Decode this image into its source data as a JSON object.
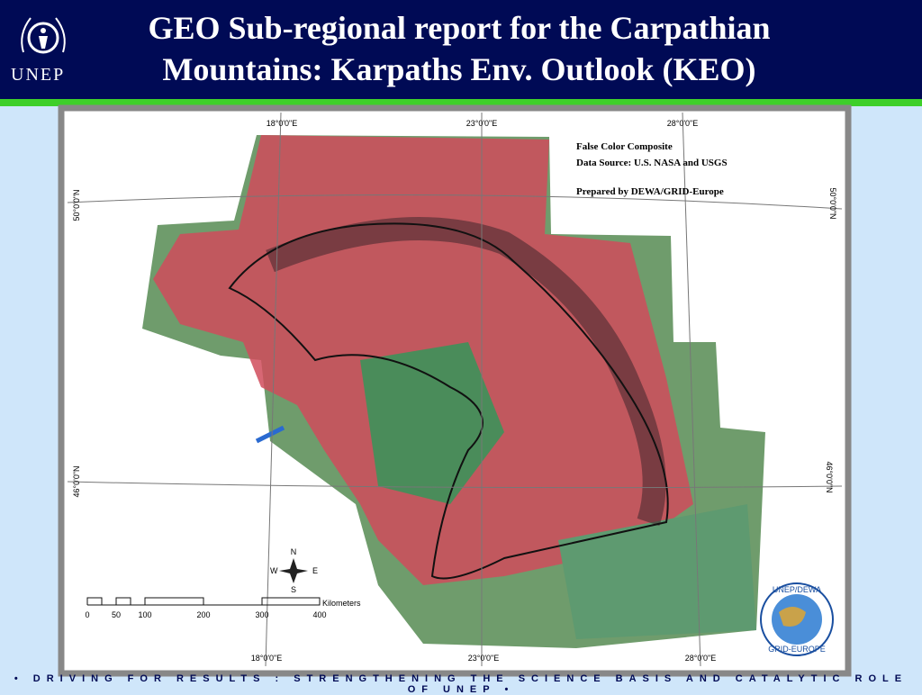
{
  "header": {
    "logo_text": "UNEP",
    "title_lines": [
      "GEO Sub-regional report for the Carpathian",
      "Mountains:  Karpaths Env. Outlook (KEO)"
    ]
  },
  "map": {
    "longitudes_top": [
      "18°0'0\"E",
      "23°0'0\"E",
      "28°0'0\"E"
    ],
    "longitudes_bottom": [
      "18°0'0\"E",
      "23°0'0\"E",
      "28°0'0\"E"
    ],
    "latitudes_left": [
      "50°0'0\"N",
      "46°0'0\"N"
    ],
    "latitudes_right": [
      "50°0'0\"N",
      "46°0'0\"N"
    ],
    "legend": [
      "False Color Composite",
      "Data Source: U.S. NASA and USGS",
      "Prepared by DEWA/GRID-Europe"
    ],
    "compass": {
      "n": "N",
      "s": "S",
      "e": "E",
      "w": "W"
    },
    "scale": {
      "unit": "Kilometers",
      "labels": [
        "0",
        "50",
        "100",
        "200",
        "300",
        "400"
      ]
    },
    "badge": {
      "top": "UNEP/DEWA",
      "bottom": "GRID-EUROPE"
    }
  },
  "footer": "• DRIVING FOR RESULTS : STRENGTHENING THE SCIENCE BASIS AND CATALYTIC ROLE OF UNEP •"
}
